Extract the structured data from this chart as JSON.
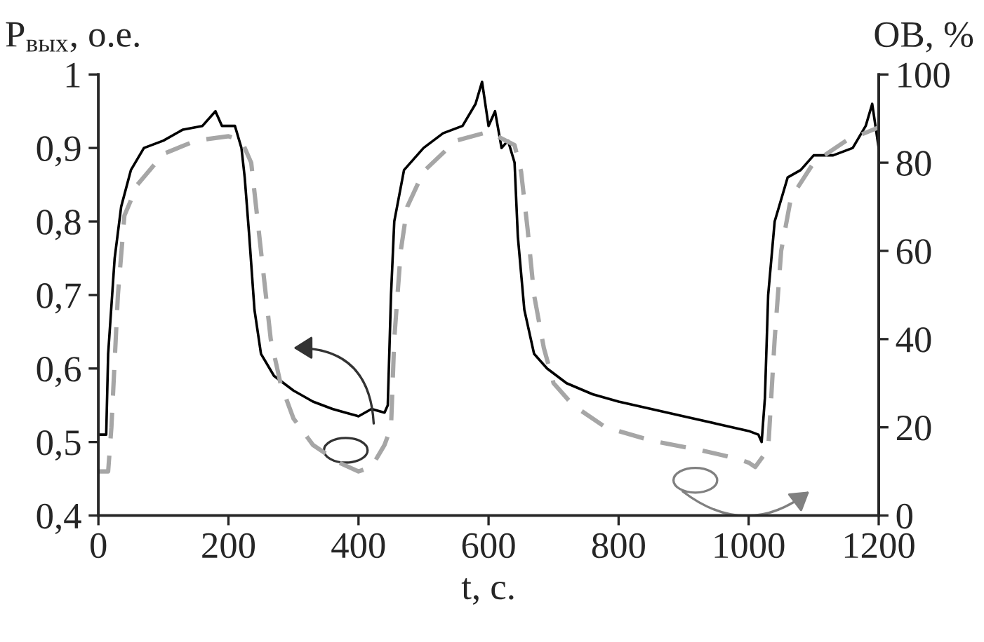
{
  "chart_data": {
    "type": "line",
    "xlabel": "t, с.",
    "ylabel": "P$_{вых}$, о.е.",
    "y2label": "ОВ, %",
    "xlim": [
      0,
      1200
    ],
    "xticks": [
      0,
      200,
      400,
      600,
      800,
      1000,
      1200
    ],
    "ylim": [
      0.4,
      1
    ],
    "yticks": [
      {
        "value": 0.4,
        "label": "0,4"
      },
      {
        "value": 0.5,
        "label": "0,5"
      },
      {
        "value": 0.6,
        "label": "0,6"
      },
      {
        "value": 0.7,
        "label": "0,7"
      },
      {
        "value": 0.8,
        "label": "0,8"
      },
      {
        "value": 0.9,
        "label": "0,9"
      },
      1
    ],
    "y2lim": [
      0,
      100
    ],
    "y2ticks": [
      0,
      20,
      40,
      60,
      80,
      100
    ],
    "grid": false,
    "legend": false,
    "series": [
      {
        "color": "#000000",
        "line_style": "solid",
        "x": [
          0,
          12,
          15,
          25,
          35,
          50,
          70,
          100,
          130,
          160,
          180,
          190,
          210,
          220,
          225,
          232,
          240,
          250,
          270,
          300,
          330,
          360,
          380,
          400,
          420,
          440,
          445,
          450,
          455,
          470,
          500,
          530,
          560,
          580,
          590,
          600,
          610,
          620,
          630,
          640,
          645,
          655,
          670,
          690,
          720,
          760,
          800,
          850,
          900,
          950,
          1000,
          1015,
          1020,
          1025,
          1030,
          1040,
          1060,
          1080,
          1100,
          1130,
          1160,
          1180,
          1190,
          1200
        ],
        "values": [
          0.51,
          0.51,
          0.62,
          0.75,
          0.82,
          0.87,
          0.9,
          0.91,
          0.925,
          0.93,
          0.95,
          0.93,
          0.93,
          0.9,
          0.86,
          0.78,
          0.68,
          0.62,
          0.59,
          0.57,
          0.555,
          0.545,
          0.54,
          0.535,
          0.545,
          0.54,
          0.55,
          0.7,
          0.8,
          0.87,
          0.9,
          0.92,
          0.93,
          0.96,
          0.99,
          0.93,
          0.95,
          0.9,
          0.91,
          0.88,
          0.78,
          0.68,
          0.62,
          0.6,
          0.58,
          0.565,
          0.555,
          0.545,
          0.535,
          0.525,
          0.515,
          0.51,
          0.5,
          0.56,
          0.7,
          0.8,
          0.86,
          0.87,
          0.89,
          0.89,
          0.9,
          0.93,
          0.96,
          0.9
        ]
      },
      {
        "color": "#a6a6a6",
        "line_style": "dashed",
        "axis": "y2",
        "x": [
          0,
          15,
          20,
          30,
          40,
          60,
          100,
          150,
          200,
          220,
          235,
          250,
          265,
          280,
          300,
          330,
          370,
          400,
          420,
          440,
          450,
          455,
          465,
          475,
          500,
          550,
          600,
          640,
          650,
          660,
          670,
          685,
          700,
          730,
          780,
          850,
          920,
          980,
          1000,
          1010,
          1030,
          1040,
          1050,
          1065,
          1100,
          1150,
          1200
        ],
        "values": [
          10,
          10,
          20,
          50,
          68,
          75,
          82,
          85,
          86,
          85,
          80,
          60,
          40,
          30,
          22,
          16,
          12,
          10,
          11,
          16,
          20,
          40,
          60,
          70,
          78,
          85,
          87,
          84,
          78,
          65,
          50,
          38,
          30,
          25,
          20,
          17,
          15,
          13,
          12,
          11,
          15,
          40,
          60,
          72,
          80,
          85,
          88
        ]
      }
    ]
  }
}
